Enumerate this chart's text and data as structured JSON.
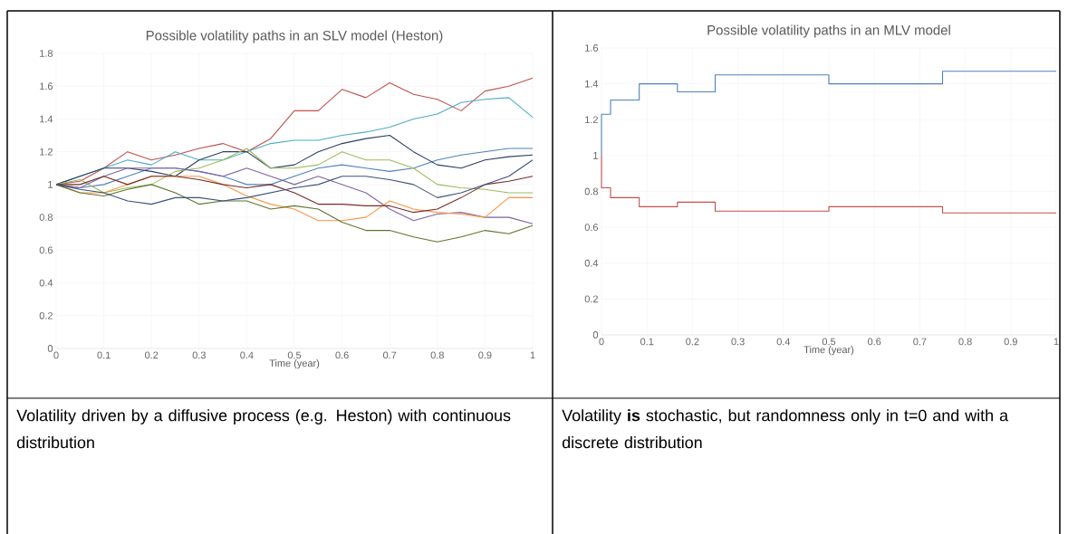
{
  "chart_data": [
    {
      "type": "line",
      "title": "Possible volatility paths in an SLV model (Heston)",
      "xlabel": "Time (year)",
      "x": [
        0,
        0.05,
        0.1,
        0.15,
        0.2,
        0.25,
        0.3,
        0.35,
        0.4,
        0.45,
        0.5,
        0.55,
        0.6,
        0.65,
        0.7,
        0.75,
        0.8,
        0.85,
        0.9,
        0.95,
        1
      ],
      "series": [
        {
          "color": "#c0504d",
          "values": [
            1,
            1.02,
            1.1,
            1.2,
            1.15,
            1.18,
            1.22,
            1.25,
            1.2,
            1.28,
            1.45,
            1.45,
            1.58,
            1.53,
            1.62,
            1.55,
            1.52,
            1.45,
            1.57,
            1.6,
            1.65
          ]
        },
        {
          "color": "#4bacc6",
          "values": [
            1,
            1.05,
            1.1,
            1.15,
            1.12,
            1.2,
            1.15,
            1.15,
            1.2,
            1.25,
            1.27,
            1.27,
            1.3,
            1.32,
            1.35,
            1.4,
            1.43,
            1.5,
            1.52,
            1.53,
            1.41
          ]
        },
        {
          "color": "#4f81bd",
          "values": [
            1,
            0.98,
            1.0,
            1.05,
            1.1,
            1.1,
            1.08,
            1.05,
            1.0,
            1.0,
            1.05,
            1.1,
            1.12,
            1.1,
            1.08,
            1.1,
            1.15,
            1.18,
            1.2,
            1.22,
            1.22
          ]
        },
        {
          "color": "#2c3e66",
          "values": [
            1,
            1.05,
            1.1,
            1.1,
            1.08,
            1.05,
            1.15,
            1.2,
            1.2,
            1.1,
            1.12,
            1.2,
            1.25,
            1.28,
            1.3,
            1.2,
            1.12,
            1.1,
            1.15,
            1.17,
            1.18
          ]
        },
        {
          "color": "#9bbb59",
          "values": [
            1,
            1.03,
            0.95,
            0.98,
            1.0,
            1.08,
            1.1,
            1.15,
            1.22,
            1.1,
            1.1,
            1.12,
            1.2,
            1.15,
            1.15,
            1.1,
            1.0,
            0.98,
            0.97,
            0.95,
            0.95
          ]
        },
        {
          "color": "#8064a2",
          "values": [
            1,
            0.98,
            1.05,
            1.1,
            1.1,
            1.1,
            1.08,
            1.05,
            1.1,
            1.05,
            1.0,
            1.05,
            1.0,
            0.95,
            0.85,
            0.78,
            0.82,
            0.83,
            0.8,
            0.8,
            0.76
          ]
        },
        {
          "color": "#f79646",
          "values": [
            1,
            0.95,
            0.95,
            1.0,
            1.05,
            1.05,
            1.05,
            1.0,
            0.93,
            0.88,
            0.85,
            0.78,
            0.78,
            0.8,
            0.9,
            0.85,
            0.83,
            0.82,
            0.8,
            0.92,
            0.92
          ]
        },
        {
          "color": "#772c2a",
          "values": [
            1,
            1.0,
            1.05,
            1.0,
            1.05,
            1.05,
            1.03,
            1.0,
            0.98,
            1.0,
            0.95,
            0.88,
            0.88,
            0.87,
            0.87,
            0.83,
            0.85,
            0.92,
            1.0,
            1.02,
            1.05
          ]
        },
        {
          "color": "#5f7530",
          "values": [
            1,
            0.95,
            0.93,
            0.97,
            1.0,
            0.95,
            0.88,
            0.9,
            0.9,
            0.85,
            0.87,
            0.85,
            0.77,
            0.72,
            0.72,
            0.68,
            0.65,
            0.68,
            0.72,
            0.7,
            0.75
          ]
        },
        {
          "color": "#3b5278",
          "values": [
            1,
            0.97,
            0.95,
            0.9,
            0.88,
            0.92,
            0.92,
            0.9,
            0.92,
            0.95,
            0.98,
            1.0,
            1.05,
            1.05,
            1.03,
            1.0,
            0.92,
            0.95,
            1.0,
            1.05,
            1.15
          ]
        }
      ],
      "xlim": [
        0,
        1
      ],
      "ylim": [
        0,
        1.8
      ],
      "xticks": [
        0,
        0.1,
        0.2,
        0.3,
        0.4,
        0.5,
        0.6,
        0.7,
        0.8,
        0.9,
        1
      ],
      "yticks": [
        0,
        0.2,
        0.4,
        0.6,
        0.8,
        1,
        1.2,
        1.4,
        1.6,
        1.8
      ],
      "grid": true,
      "annotations": [
        "Volatility driven by a diffusive process (e.g. Heston) with continuous distribution"
      ]
    },
    {
      "type": "step",
      "title": "Possible volatility paths in an MLV model",
      "xlabel": "Time (year)",
      "x": [
        0,
        0,
        0.02,
        0.083,
        0.167,
        0.25,
        0.5,
        0.75,
        1
      ],
      "series": [
        {
          "color": "#4f81bd",
          "values": [
            1,
            1.23,
            1.31,
            1.4,
            1.355,
            1.45,
            1.4,
            1.47,
            1.47
          ]
        },
        {
          "color": "#c0504d",
          "values": [
            1,
            0.82,
            0.765,
            0.715,
            0.74,
            0.69,
            0.715,
            0.68,
            0.68
          ]
        }
      ],
      "xlim": [
        0,
        1
      ],
      "ylim": [
        0,
        1.6
      ],
      "xticks": [
        0,
        0.1,
        0.2,
        0.3,
        0.4,
        0.5,
        0.6,
        0.7,
        0.8,
        0.9,
        1
      ],
      "yticks": [
        0,
        0.2,
        0.4,
        0.6,
        0.8,
        1,
        1.2,
        1.4,
        1.6
      ],
      "grid": true,
      "annotations": [
        "Volatility **is** stochastic, but randomness only in t=0 and with a discrete distribution"
      ]
    }
  ]
}
